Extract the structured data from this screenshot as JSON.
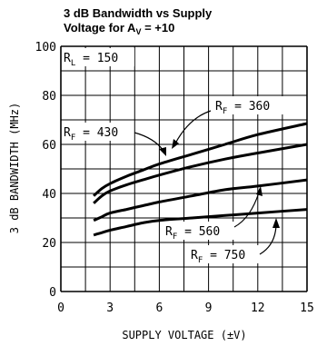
{
  "chart_data": {
    "type": "line",
    "title": {
      "line1": "3 dB Bandwidth vs Supply",
      "line2_main": "Voltage for A",
      "line2_sub": "V",
      "line2_rest": " = +10"
    },
    "xlabel": "SUPPLY VOLTAGE (±V)",
    "ylabel": "3 dB BANDWIDTH (MHz)",
    "xlim": [
      0,
      15
    ],
    "ylim": [
      0,
      100
    ],
    "xticks": [
      0,
      3,
      6,
      9,
      12,
      15
    ],
    "xtick_labels": [
      "0",
      "3",
      "6",
      "9",
      "12",
      "15"
    ],
    "yticks": [
      0,
      20,
      40,
      60,
      80,
      100
    ],
    "ytick_labels": [
      "0",
      "20",
      "40",
      "60",
      "80",
      "100"
    ],
    "grid": true,
    "condition": {
      "main": "R",
      "sub": "L",
      "rest": " = 150"
    },
    "series": [
      {
        "name": "R_F = 360",
        "label_main": "R",
        "label_sub": "F",
        "label_rest": " = 360",
        "x": [
          2,
          2.5,
          3,
          4,
          5,
          6,
          8,
          10,
          12,
          15
        ],
        "y": [
          39,
          42,
          44,
          47,
          49.5,
          52,
          56,
          60,
          64,
          68.5
        ]
      },
      {
        "name": "R_F = 430",
        "label_main": "R",
        "label_sub": "F",
        "label_rest": " = 430",
        "x": [
          2,
          2.5,
          3,
          4,
          5,
          6,
          8,
          10,
          12,
          15
        ],
        "y": [
          36,
          39,
          41,
          43.5,
          45.5,
          47.5,
          51,
          54,
          56.5,
          60
        ]
      },
      {
        "name": "R_F = 560",
        "label_main": "R",
        "label_sub": "F",
        "label_rest": " = 560",
        "x": [
          2,
          2.5,
          3,
          4,
          5,
          6,
          8,
          10,
          12,
          15
        ],
        "y": [
          29,
          30.5,
          32,
          33.5,
          35,
          36.5,
          39,
          41.5,
          43,
          45.5
        ]
      },
      {
        "name": "R_F = 750",
        "label_main": "R",
        "label_sub": "F",
        "label_rest": " = 750",
        "x": [
          2,
          2.5,
          3,
          4,
          5,
          6,
          8,
          10,
          12,
          15
        ],
        "y": [
          23,
          24,
          25,
          26.5,
          28,
          29,
          30,
          31,
          32,
          33.5
        ]
      }
    ]
  }
}
